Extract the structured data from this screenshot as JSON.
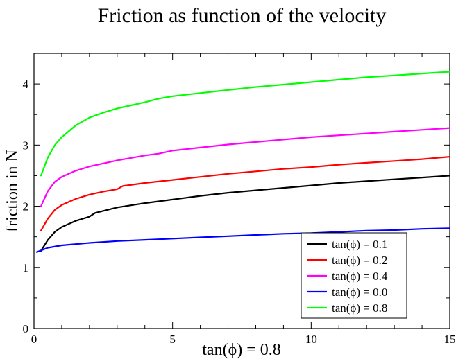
{
  "chart_data": {
    "type": "line",
    "title": "Friction as function of the velocity",
    "xlabel": "tan(ϕ) = 0.8",
    "ylabel": "friction in N",
    "xlim": [
      0,
      15
    ],
    "ylim": [
      0,
      4.5
    ],
    "x_ticks": [
      "0",
      "5",
      "10",
      "15"
    ],
    "y_ticks": [
      "0",
      "1",
      "2",
      "3",
      "4"
    ],
    "grid": false,
    "legend_position": "bottom-right",
    "series": [
      {
        "name": "tan(ϕ) = 0.1",
        "color": "#000000",
        "x": [
          0.25,
          0.5,
          0.75,
          1,
          1.5,
          2,
          2.2,
          3,
          4,
          5,
          6,
          7,
          8,
          9,
          10,
          11,
          12,
          13,
          14,
          15
        ],
        "y": [
          1.27,
          1.45,
          1.58,
          1.66,
          1.76,
          1.83,
          1.89,
          1.98,
          2.05,
          2.11,
          2.17,
          2.22,
          2.26,
          2.3,
          2.34,
          2.38,
          2.41,
          2.44,
          2.47,
          2.5
        ]
      },
      {
        "name": "tan(ϕ) = 0.2",
        "color": "#ff0000",
        "x": [
          0.25,
          0.5,
          0.75,
          1,
          1.5,
          2,
          2.5,
          3,
          3.2,
          4,
          5,
          6,
          7,
          8,
          9,
          10,
          11,
          12,
          13,
          14,
          15
        ],
        "y": [
          1.6,
          1.8,
          1.94,
          2.02,
          2.12,
          2.19,
          2.24,
          2.28,
          2.33,
          2.38,
          2.43,
          2.48,
          2.53,
          2.57,
          2.61,
          2.64,
          2.68,
          2.71,
          2.74,
          2.77,
          2.81
        ]
      },
      {
        "name": "tan(ϕ) = 0.4",
        "color": "#ff00ff",
        "x": [
          0.25,
          0.5,
          0.75,
          1,
          1.5,
          2,
          3,
          4,
          4.5,
          5,
          6,
          7,
          8,
          9,
          10,
          11,
          12,
          13,
          14,
          15
        ],
        "y": [
          2.0,
          2.25,
          2.4,
          2.48,
          2.58,
          2.65,
          2.75,
          2.83,
          2.86,
          2.91,
          2.96,
          3.01,
          3.05,
          3.09,
          3.13,
          3.16,
          3.19,
          3.22,
          3.25,
          3.28
        ]
      },
      {
        "name": "tan(ϕ) = 0.0",
        "color": "#0000ff",
        "x": [
          0.1,
          0.5,
          1,
          2,
          3,
          4,
          5,
          6,
          7,
          8,
          9,
          10,
          11,
          12,
          13,
          14,
          15
        ],
        "y": [
          1.25,
          1.32,
          1.36,
          1.4,
          1.43,
          1.45,
          1.47,
          1.49,
          1.51,
          1.53,
          1.55,
          1.56,
          1.58,
          1.6,
          1.61,
          1.63,
          1.64
        ]
      },
      {
        "name": "tan(ϕ) = 0.8",
        "color": "#00ff00",
        "x": [
          0.25,
          0.5,
          0.75,
          1,
          1.5,
          2,
          2.5,
          3,
          3.5,
          4,
          4.5,
          5,
          6,
          7,
          8,
          9,
          10,
          11,
          12,
          13,
          14,
          15
        ],
        "y": [
          2.5,
          2.8,
          3.0,
          3.13,
          3.32,
          3.45,
          3.53,
          3.6,
          3.65,
          3.7,
          3.76,
          3.8,
          3.85,
          3.9,
          3.95,
          3.99,
          4.03,
          4.07,
          4.11,
          4.14,
          4.17,
          4.2
        ]
      }
    ]
  }
}
